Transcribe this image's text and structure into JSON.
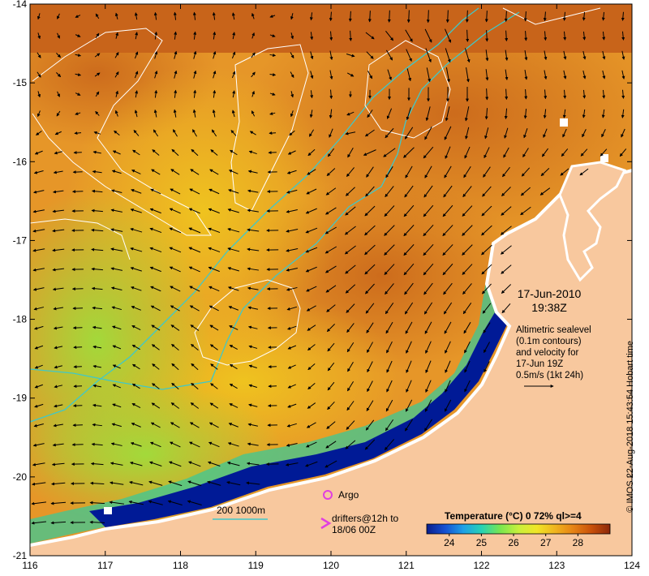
{
  "map": {
    "lon_range": [
      116,
      124
    ],
    "lat_range": [
      -21,
      -14
    ],
    "x_ticks": [
      "116",
      "117",
      "118",
      "119",
      "120",
      "121",
      "122",
      "123",
      "124"
    ],
    "y_ticks": [
      "-14",
      "-15",
      "-16",
      "-17",
      "-18",
      "-19",
      "-20",
      "-21"
    ]
  },
  "info": {
    "date": "17-Jun-2010",
    "time": "19:38Z",
    "line1": "Altimetric sealevel",
    "line2": "(0.1m contours)",
    "line3": "and velocity for",
    "line4": "17-Jun 19Z",
    "line5": "0.5m/s (1kt 24h)"
  },
  "legend": {
    "argo": "Argo",
    "drifters_line1": "drifters@12h to",
    "drifters_line2": "18/06 00Z",
    "isobath": "200  1000m"
  },
  "colorbar": {
    "title": "Temperature (°C) 0 72% ql>=4",
    "ticks": [
      "24",
      "25",
      "26",
      "27",
      "28"
    ],
    "range": [
      23.3,
      29.0
    ],
    "colors": [
      "#0a1e8c",
      "#1450d2",
      "#1ea0e6",
      "#28d2b4",
      "#78e650",
      "#c8f03c",
      "#f0e628",
      "#f0b41e",
      "#e68214",
      "#c8500a",
      "#8c280a"
    ]
  },
  "copyright": "© IMOS 22-Aug-2018 15:43:54 Hobart time",
  "colors": {
    "land": "#f8c89e",
    "coast_deep": "#001a96",
    "warm": "#d2781e",
    "mid": "#f0a01e",
    "cool": "#a0e03c",
    "isobath": "#40c8c8",
    "contour": "#ffffff",
    "argo": "#e040e0"
  }
}
